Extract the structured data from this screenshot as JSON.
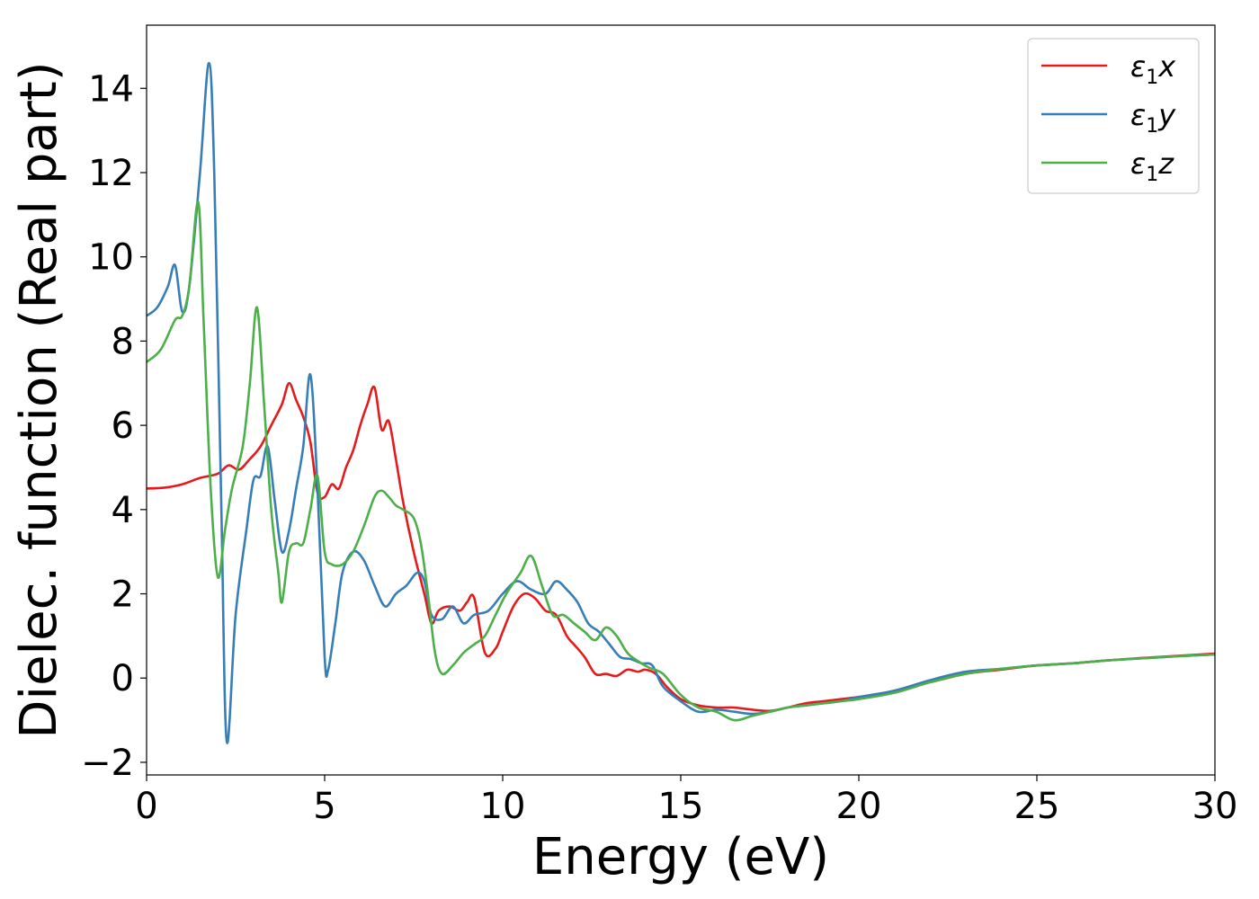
{
  "chart_data": {
    "type": "line",
    "xlabel": "Energy (eV)",
    "ylabel": "Dielec. function (Real part)",
    "xlim": [
      0,
      30
    ],
    "ylim": [
      -2.3,
      15.5
    ],
    "xticks": [
      0,
      5,
      10,
      15,
      20,
      25,
      30
    ],
    "yticks": [
      -2,
      0,
      2,
      4,
      6,
      8,
      10,
      12,
      14
    ],
    "xtick_labels": [
      "0",
      "5",
      "10",
      "15",
      "20",
      "25",
      "30"
    ],
    "ytick_labels": [
      "−2",
      "0",
      "2",
      "4",
      "6",
      "8",
      "10",
      "12",
      "14"
    ],
    "grid": false,
    "legend_position": "top-right",
    "series": [
      {
        "name": "ε1x",
        "legend_base": "ε",
        "legend_sub": "1",
        "legend_var": "x",
        "color": "#e41a1c",
        "x": [
          0,
          0.5,
          1,
          1.5,
          2,
          2.3,
          2.6,
          2.9,
          3.2,
          3.5,
          3.8,
          4.0,
          4.2,
          4.4,
          4.6,
          4.8,
          5.0,
          5.2,
          5.4,
          5.6,
          5.8,
          6.0,
          6.2,
          6.4,
          6.6,
          6.8,
          7.0,
          7.2,
          7.5,
          7.8,
          8.0,
          8.2,
          8.5,
          8.8,
          9.0,
          9.2,
          9.5,
          9.8,
          10.0,
          10.3,
          10.6,
          10.9,
          11.2,
          11.5,
          11.8,
          12.0,
          12.3,
          12.6,
          12.9,
          13.2,
          13.5,
          13.8,
          14.0,
          14.3,
          14.6,
          15.0,
          15.5,
          16.0,
          16.5,
          17.0,
          17.5,
          18.0,
          18.5,
          19.0,
          19.5,
          20.0,
          20.5,
          21.0,
          22.0,
          23.0,
          24.0,
          25.0,
          26.0,
          27.0,
          28.0,
          29.0,
          30.0
        ],
        "values": [
          4.5,
          4.52,
          4.6,
          4.75,
          4.85,
          5.05,
          4.95,
          5.2,
          5.5,
          6.0,
          6.5,
          7.0,
          6.6,
          6.2,
          5.6,
          4.4,
          4.3,
          4.6,
          4.5,
          5.0,
          5.4,
          6.0,
          6.5,
          6.9,
          5.9,
          6.1,
          5.2,
          4.2,
          3.0,
          2.0,
          1.3,
          1.6,
          1.7,
          1.6,
          1.8,
          1.9,
          0.6,
          0.7,
          1.1,
          1.7,
          2.0,
          1.9,
          1.6,
          1.5,
          1.0,
          0.8,
          0.5,
          0.1,
          0.1,
          0.05,
          0.2,
          0.15,
          0.2,
          0.1,
          -0.2,
          -0.5,
          -0.65,
          -0.7,
          -0.7,
          -0.75,
          -0.78,
          -0.7,
          -0.6,
          -0.55,
          -0.5,
          -0.45,
          -0.4,
          -0.3,
          -0.1,
          0.1,
          0.2,
          0.3,
          0.35,
          0.42,
          0.48,
          0.53,
          0.58
        ]
      },
      {
        "name": "ε1y",
        "legend_base": "ε",
        "legend_sub": "1",
        "legend_var": "y",
        "color": "#377eb8",
        "x": [
          0,
          0.3,
          0.6,
          0.8,
          1.0,
          1.2,
          1.5,
          1.75,
          1.9,
          2.1,
          2.25,
          2.5,
          2.8,
          3.0,
          3.2,
          3.4,
          3.6,
          3.8,
          4.0,
          4.2,
          4.4,
          4.6,
          4.8,
          5.0,
          5.1,
          5.3,
          5.5,
          5.8,
          6.1,
          6.4,
          6.7,
          7.0,
          7.3,
          7.6,
          7.8,
          8.0,
          8.3,
          8.6,
          8.9,
          9.2,
          9.6,
          10.0,
          10.4,
          10.8,
          11.2,
          11.5,
          11.8,
          12.1,
          12.4,
          12.7,
          13.0,
          13.3,
          13.6,
          13.9,
          14.2,
          14.5,
          15.0,
          15.5,
          16.0,
          16.5,
          17.0,
          17.5,
          18.0,
          18.5,
          19.0,
          19.5,
          20.0,
          21.0,
          22.0,
          23.0,
          24.0,
          25.0,
          26.0,
          27.0,
          28.0,
          29.0,
          30.0
        ],
        "values": [
          8.6,
          8.8,
          9.3,
          9.8,
          8.7,
          9.3,
          12.0,
          14.6,
          12.0,
          4.0,
          -1.5,
          1.5,
          3.5,
          4.7,
          4.8,
          5.5,
          4.2,
          3.0,
          3.5,
          4.5,
          5.5,
          7.2,
          4.5,
          0.5,
          0.2,
          1.3,
          2.5,
          3.0,
          2.8,
          2.2,
          1.7,
          2.0,
          2.2,
          2.5,
          2.3,
          1.5,
          1.4,
          1.7,
          1.3,
          1.5,
          1.6,
          2.0,
          2.3,
          2.1,
          2.0,
          2.3,
          2.1,
          1.8,
          1.3,
          1.1,
          0.8,
          0.5,
          0.45,
          0.35,
          0.3,
          -0.2,
          -0.55,
          -0.8,
          -0.75,
          -0.8,
          -0.85,
          -0.8,
          -0.7,
          -0.65,
          -0.6,
          -0.55,
          -0.45,
          -0.3,
          -0.05,
          0.15,
          0.22,
          0.3,
          0.35,
          0.42,
          0.47,
          0.52,
          0.56
        ]
      },
      {
        "name": "ε1z",
        "legend_base": "ε",
        "legend_sub": "1",
        "legend_var": "z",
        "color": "#4daf4a",
        "x": [
          0,
          0.4,
          0.8,
          1.0,
          1.2,
          1.45,
          1.6,
          1.8,
          2.0,
          2.2,
          2.4,
          2.7,
          2.9,
          3.1,
          3.3,
          3.5,
          3.7,
          3.8,
          4.0,
          4.2,
          4.4,
          4.6,
          4.8,
          5.0,
          5.2,
          5.5,
          5.8,
          6.1,
          6.4,
          6.6,
          6.8,
          7.0,
          7.2,
          7.5,
          7.7,
          7.9,
          8.1,
          8.3,
          8.6,
          8.9,
          9.2,
          9.5,
          9.8,
          10.1,
          10.5,
          10.8,
          11.1,
          11.4,
          11.7,
          12.0,
          12.3,
          12.6,
          12.9,
          13.2,
          13.5,
          13.8,
          14.1,
          14.5,
          15.0,
          15.5,
          16.0,
          16.5,
          17.0,
          17.5,
          18.0,
          18.5,
          19.0,
          19.5,
          20.0,
          21.0,
          22.0,
          23.0,
          24.0,
          25.0,
          26.0,
          27.0,
          28.0,
          29.0,
          30.0
        ],
        "values": [
          7.5,
          7.8,
          8.5,
          8.6,
          9.3,
          11.3,
          8.5,
          4.5,
          2.4,
          3.5,
          4.5,
          5.5,
          7.0,
          8.8,
          6.5,
          4.0,
          2.5,
          1.8,
          3.0,
          3.2,
          3.2,
          4.0,
          4.8,
          3.0,
          2.7,
          2.7,
          3.0,
          3.6,
          4.3,
          4.45,
          4.3,
          4.1,
          4.0,
          3.8,
          3.2,
          2.0,
          0.6,
          0.1,
          0.3,
          0.6,
          0.8,
          1.0,
          1.5,
          2.0,
          2.5,
          2.9,
          2.2,
          1.5,
          1.5,
          1.3,
          1.1,
          0.9,
          1.2,
          1.0,
          0.6,
          0.4,
          0.25,
          0.1,
          -0.4,
          -0.7,
          -0.8,
          -1.0,
          -0.9,
          -0.8,
          -0.7,
          -0.65,
          -0.6,
          -0.55,
          -0.5,
          -0.35,
          -0.1,
          0.1,
          0.22,
          0.3,
          0.35,
          0.42,
          0.47,
          0.52,
          0.56
        ]
      }
    ]
  }
}
